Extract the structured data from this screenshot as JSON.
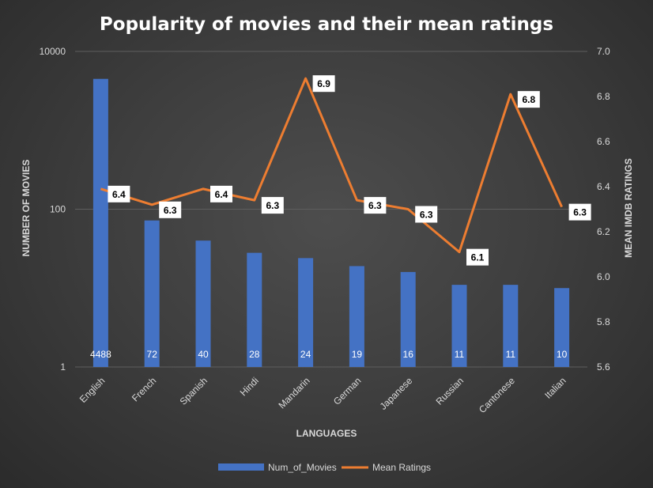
{
  "chart_data": {
    "type": "bar+line",
    "title": "Popularity of movies and their mean ratings",
    "xlabel": "LANGUAGES",
    "ylabel_left": "NUMBER OF MOVIES",
    "ylabel_right": "MEAN IMDB RATINGS",
    "y_left_scale": "log",
    "y_left_ticks": [
      "1",
      "100",
      "10000"
    ],
    "y_left_lim": [
      1,
      10000
    ],
    "y_right_ticks": [
      "5.6",
      "5.8",
      "6.0",
      "6.2",
      "6.4",
      "6.6",
      "6.8",
      "7.0"
    ],
    "y_right_lim": [
      5.6,
      7.0
    ],
    "categories": [
      "English",
      "French",
      "Spanish",
      "Hindi",
      "Mandarin",
      "German",
      "Japanese",
      "Russian",
      "Cantonese",
      "Italian"
    ],
    "series": [
      {
        "name": "Num_of_Movies",
        "type": "bar",
        "axis": "left",
        "values": [
          4488,
          72,
          40,
          28,
          24,
          19,
          16,
          11,
          11,
          10
        ]
      },
      {
        "name": "Mean Ratings",
        "type": "line",
        "axis": "right",
        "values": [
          6.4,
          6.3,
          6.4,
          6.3,
          6.9,
          6.3,
          6.3,
          6.1,
          6.8,
          6.3
        ]
      }
    ],
    "line_plot_values": [
      6.39,
      6.32,
      6.39,
      6.34,
      6.88,
      6.34,
      6.3,
      6.11,
      6.81,
      6.31
    ],
    "colors": {
      "bar": "#4472c4",
      "line": "#ed7d31",
      "background": "#404040"
    },
    "grid": true,
    "legend_position": "bottom"
  }
}
